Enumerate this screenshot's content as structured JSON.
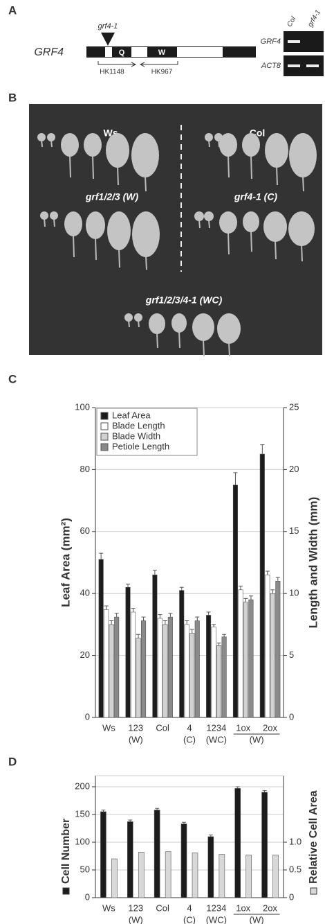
{
  "panel_labels": [
    "A",
    "B",
    "C",
    "D"
  ],
  "gene_diagram": {
    "allele": "grf4-1",
    "gene": "GRF4",
    "domains": [
      "Q",
      "W"
    ],
    "primers": [
      "HK1148",
      "HK967"
    ]
  },
  "gel": {
    "lanes": [
      "Col",
      "grf4-1"
    ],
    "rows": [
      "GRF4",
      "ACT8"
    ]
  },
  "photo": {
    "labels": [
      "Ws",
      "Col",
      "grf1/2/3 (W)",
      "grf4-1 (C)",
      "grf1/2/3/4-1 (WC)"
    ]
  },
  "chart_data": [
    {
      "type": "bar",
      "categories": [
        "Ws",
        "123",
        "Col",
        "4",
        "1234",
        "1ox",
        "2ox"
      ],
      "category_notes": [
        null,
        "(W)",
        null,
        "(C)",
        "(WC)",
        null,
        null
      ],
      "group_note": {
        "text": "(W)",
        "first": 5,
        "last": 6
      },
      "ylabel": "Leaf Area (mm²)",
      "y2label": "Length and Width (mm)",
      "ylim": [
        0,
        100
      ],
      "yticks": [
        0,
        20,
        40,
        60,
        80,
        100
      ],
      "y2lim": [
        0,
        25
      ],
      "y2ticks": [
        0,
        5,
        10,
        15,
        20,
        25
      ],
      "grid": true,
      "legend": "upper left",
      "series": [
        {
          "name": "Leaf Area",
          "color": "#1c1c1c",
          "values": [
            51,
            42,
            46,
            41,
            33,
            75,
            85
          ],
          "errors": [
            2,
            1,
            1.5,
            1,
            1,
            4,
            3
          ]
        },
        {
          "name": "Blade Length",
          "color": "#ffffff",
          "axis": "y2",
          "values": [
            8.7,
            8.5,
            8.0,
            7.5,
            7.3,
            10.3,
            11.5
          ],
          "errors": [
            0.3,
            0.3,
            0.3,
            0.3,
            0.2,
            0.3,
            0.3
          ]
        },
        {
          "name": "Blade Width",
          "color": "#d2d2d2",
          "axis": "y2",
          "values": [
            7.5,
            6.4,
            7.5,
            6.8,
            5.8,
            9.3,
            10.0
          ],
          "errors": [
            0.3,
            0.3,
            0.3,
            0.3,
            0.2,
            0.3,
            0.3
          ]
        },
        {
          "name": "Petiole Length",
          "color": "#8a8a8a",
          "axis": "y2",
          "values": [
            8.1,
            7.8,
            8.1,
            7.8,
            6.5,
            9.5,
            11.0
          ],
          "errors": [
            0.3,
            0.3,
            0.3,
            0.3,
            0.2,
            0.3,
            0.3
          ]
        }
      ]
    },
    {
      "type": "bar",
      "categories": [
        "Ws",
        "123",
        "Col",
        "4",
        "1234",
        "1ox",
        "2ox"
      ],
      "category_notes": [
        null,
        "(W)",
        null,
        "(C)",
        "(WC)",
        null,
        null
      ],
      "group_note": {
        "text": "(W)",
        "first": 5,
        "last": 6
      },
      "ylim": [
        0,
        220
      ],
      "yticks": [
        0,
        50,
        100,
        150,
        200
      ],
      "y2lim": [
        0,
        2.2
      ],
      "y2ticks": [
        0,
        0.5,
        {
          "value": 1,
          "label": "1.0"
        }
      ],
      "grid": true,
      "series": [
        {
          "name": "Cell Number",
          "color": "#1c1c1c",
          "values": [
            155,
            137,
            158,
            133,
            110,
            197,
            190
          ],
          "errors": [
            3,
            3,
            3,
            3,
            3,
            3,
            3
          ]
        },
        {
          "name": "Relative Cell Area",
          "color": "#d8d8d8",
          "axis": "y2",
          "values": [
            0.7,
            0.82,
            0.83,
            0.81,
            0.78,
            0.77,
            0.77
          ]
        }
      ]
    }
  ]
}
